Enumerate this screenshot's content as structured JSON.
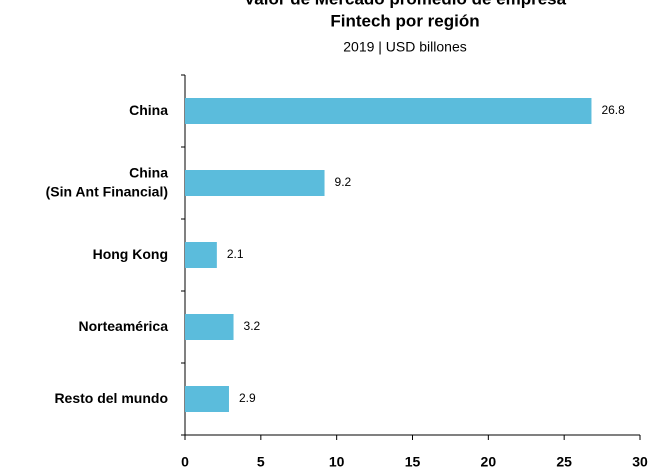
{
  "chart_data": {
    "type": "barh",
    "title": [
      "Valor de Mercado promedio de empresa",
      "Fintech por región"
    ],
    "subtitle": "2019 | USD billones",
    "categories": [
      "China",
      "China\n(Sin Ant Financial)",
      "Hong Kong",
      "Norteamérica",
      "Resto del mundo"
    ],
    "values": [
      26.8,
      9.2,
      2.1,
      3.2,
      2.9
    ],
    "color": "#5bbcdc",
    "xlim": [
      0,
      30
    ],
    "xticks": [
      0,
      5,
      10,
      15,
      20,
      25,
      30
    ]
  }
}
